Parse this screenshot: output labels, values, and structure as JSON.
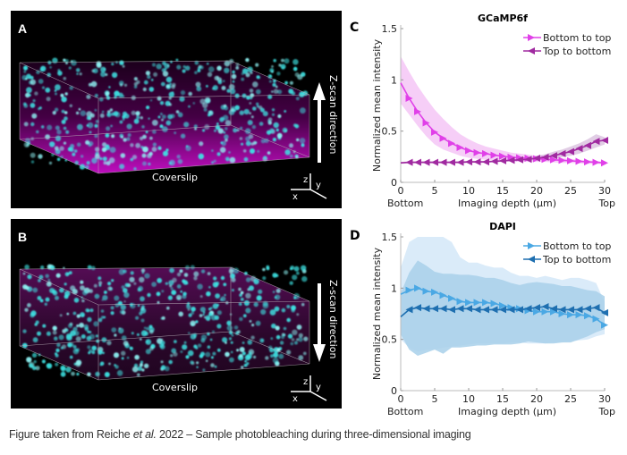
{
  "panels": {
    "A": {
      "letter": "A",
      "coverslip": "Coverslip",
      "zscan": "Z-scan direction",
      "arrow": "up",
      "axes": {
        "z": "z",
        "y": "y",
        "x": "x"
      }
    },
    "B": {
      "letter": "B",
      "coverslip": "Coverslip",
      "zscan": "Z-scan direction",
      "arrow": "down",
      "axes": {
        "z": "z",
        "y": "y",
        "x": "x"
      }
    }
  },
  "caption": {
    "prefix": "Figure taken from Reiche ",
    "italic": "et al.",
    "suffix": " 2022 – Sample photobleaching during three-dimensional imaging"
  },
  "chart_data": [
    {
      "panel_letter": "C",
      "type": "line",
      "title": "GCaMP6f",
      "xlabel": "Imaging depth (µm)",
      "ylabel": "Normalized mean intensity",
      "x_end_labels": {
        "left": "Bottom",
        "right": "Top"
      },
      "xlim": [
        0,
        30
      ],
      "ylim": [
        0,
        1.5
      ],
      "xticks": [
        0,
        5,
        10,
        15,
        20,
        25,
        30
      ],
      "yticks": [
        0,
        0.5,
        1,
        1.5
      ],
      "ytick_labels": [
        "0",
        "0.5",
        "1",
        "1.5"
      ],
      "grid": false,
      "legend_position": "top-right",
      "x": [
        0,
        1.25,
        2.5,
        3.75,
        5,
        6.25,
        7.5,
        8.75,
        10,
        11.25,
        12.5,
        13.75,
        15,
        16.25,
        17.5,
        18.75,
        20,
        21.25,
        22.5,
        23.75,
        25,
        26.25,
        27.5,
        28.75,
        30
      ],
      "series": [
        {
          "name": "Bottom to top",
          "color": "#e040e8",
          "band_color": "#f4c6f6",
          "marker": "triangle-right",
          "values": [
            0.97,
            0.82,
            0.69,
            0.58,
            0.49,
            0.43,
            0.38,
            0.34,
            0.31,
            0.29,
            0.28,
            0.265,
            0.255,
            0.245,
            0.24,
            0.235,
            0.23,
            0.225,
            0.22,
            0.215,
            0.21,
            0.205,
            0.2,
            0.195,
            0.19
          ],
          "band_upper": [
            1.23,
            1.08,
            0.94,
            0.82,
            0.71,
            0.62,
            0.54,
            0.47,
            0.42,
            0.38,
            0.35,
            0.33,
            0.31,
            0.29,
            0.28,
            0.27,
            0.26,
            0.25,
            0.245,
            0.235,
            0.23,
            0.22,
            0.215,
            0.21,
            0.2
          ],
          "band_lower": [
            0.77,
            0.66,
            0.55,
            0.45,
            0.37,
            0.32,
            0.29,
            0.26,
            0.24,
            0.23,
            0.22,
            0.215,
            0.21,
            0.205,
            0.2,
            0.2,
            0.2,
            0.2,
            0.195,
            0.19,
            0.19,
            0.185,
            0.18,
            0.18,
            0.175
          ]
        },
        {
          "name": "Top to bottom",
          "color": "#a02aa0",
          "band_color": "#dcc4e0",
          "marker": "triangle-left",
          "values": [
            0.19,
            0.195,
            0.195,
            0.195,
            0.195,
            0.195,
            0.195,
            0.195,
            0.2,
            0.2,
            0.2,
            0.205,
            0.21,
            0.215,
            0.22,
            0.225,
            0.235,
            0.245,
            0.26,
            0.28,
            0.3,
            0.33,
            0.36,
            0.4,
            0.41
          ],
          "band_upper": [
            0.2,
            0.205,
            0.205,
            0.205,
            0.205,
            0.205,
            0.205,
            0.205,
            0.21,
            0.21,
            0.21,
            0.215,
            0.22,
            0.225,
            0.235,
            0.245,
            0.26,
            0.275,
            0.3,
            0.32,
            0.35,
            0.38,
            0.42,
            0.47,
            0.44
          ],
          "band_lower": [
            0.18,
            0.185,
            0.185,
            0.185,
            0.185,
            0.185,
            0.185,
            0.185,
            0.19,
            0.19,
            0.19,
            0.195,
            0.2,
            0.205,
            0.21,
            0.21,
            0.215,
            0.22,
            0.23,
            0.245,
            0.26,
            0.28,
            0.31,
            0.34,
            0.37
          ]
        }
      ]
    },
    {
      "panel_letter": "D",
      "type": "line",
      "title": "DAPI",
      "xlabel": "Imaging depth (µm)",
      "ylabel": "Normalized mean intensity",
      "x_end_labels": {
        "left": "Bottom",
        "right": "Top"
      },
      "xlim": [
        0,
        30
      ],
      "ylim": [
        0,
        1.5
      ],
      "xticks": [
        0,
        5,
        10,
        15,
        20,
        25,
        30
      ],
      "yticks": [
        0,
        0.5,
        1,
        1.5
      ],
      "ytick_labels": [
        "0",
        "0.5",
        "1",
        "1.5"
      ],
      "grid": false,
      "legend_position": "top-right",
      "x": [
        0,
        1.25,
        2.5,
        3.75,
        5,
        6.25,
        7.5,
        8.75,
        10,
        11.25,
        12.5,
        13.75,
        15,
        16.25,
        17.5,
        18.75,
        20,
        21.25,
        22.5,
        23.75,
        25,
        26.25,
        27.5,
        28.75,
        30
      ],
      "series": [
        {
          "name": "Bottom to top",
          "color": "#4aa8e4",
          "band_color": "#d4e8f8",
          "marker": "triangle-right",
          "values": [
            0.94,
            0.98,
            1.0,
            0.97,
            0.96,
            0.93,
            0.9,
            0.87,
            0.86,
            0.86,
            0.86,
            0.85,
            0.83,
            0.81,
            0.8,
            0.78,
            0.77,
            0.77,
            0.77,
            0.75,
            0.74,
            0.74,
            0.73,
            0.7,
            0.64
          ],
          "band_upper": [
            1.2,
            1.45,
            1.5,
            1.5,
            1.5,
            1.5,
            1.45,
            1.3,
            1.25,
            1.25,
            1.22,
            1.2,
            1.2,
            1.15,
            1.12,
            1.12,
            1.1,
            1.12,
            1.1,
            1.08,
            1.1,
            1.1,
            1.08,
            1.05,
            0.86
          ],
          "band_lower": [
            0.5,
            0.42,
            0.38,
            0.4,
            0.4,
            0.42,
            0.43,
            0.44,
            0.45,
            0.46,
            0.46,
            0.46,
            0.46,
            0.47,
            0.47,
            0.46,
            0.46,
            0.46,
            0.47,
            0.47,
            0.48,
            0.49,
            0.5,
            0.53,
            0.55
          ]
        },
        {
          "name": "Top to bottom",
          "color": "#1e6fb0",
          "band_color": "#a8d0ea",
          "marker": "triangle-left",
          "values": [
            0.72,
            0.79,
            0.81,
            0.8,
            0.8,
            0.8,
            0.79,
            0.8,
            0.8,
            0.79,
            0.79,
            0.79,
            0.79,
            0.79,
            0.79,
            0.8,
            0.81,
            0.82,
            0.8,
            0.79,
            0.79,
            0.79,
            0.8,
            0.81,
            0.76
          ],
          "band_upper": [
            0.95,
            1.15,
            1.27,
            1.22,
            1.16,
            1.14,
            1.14,
            1.13,
            1.13,
            1.12,
            1.1,
            1.1,
            1.08,
            1.05,
            1.03,
            1.05,
            1.06,
            1.05,
            1.04,
            1.02,
            1.02,
            1.0,
            0.98,
            0.97,
            0.92
          ],
          "band_lower": [
            0.55,
            0.4,
            0.34,
            0.37,
            0.4,
            0.36,
            0.42,
            0.42,
            0.43,
            0.44,
            0.44,
            0.45,
            0.45,
            0.45,
            0.46,
            0.48,
            0.47,
            0.46,
            0.46,
            0.47,
            0.47,
            0.5,
            0.53,
            0.57,
            0.6
          ]
        }
      ]
    }
  ]
}
